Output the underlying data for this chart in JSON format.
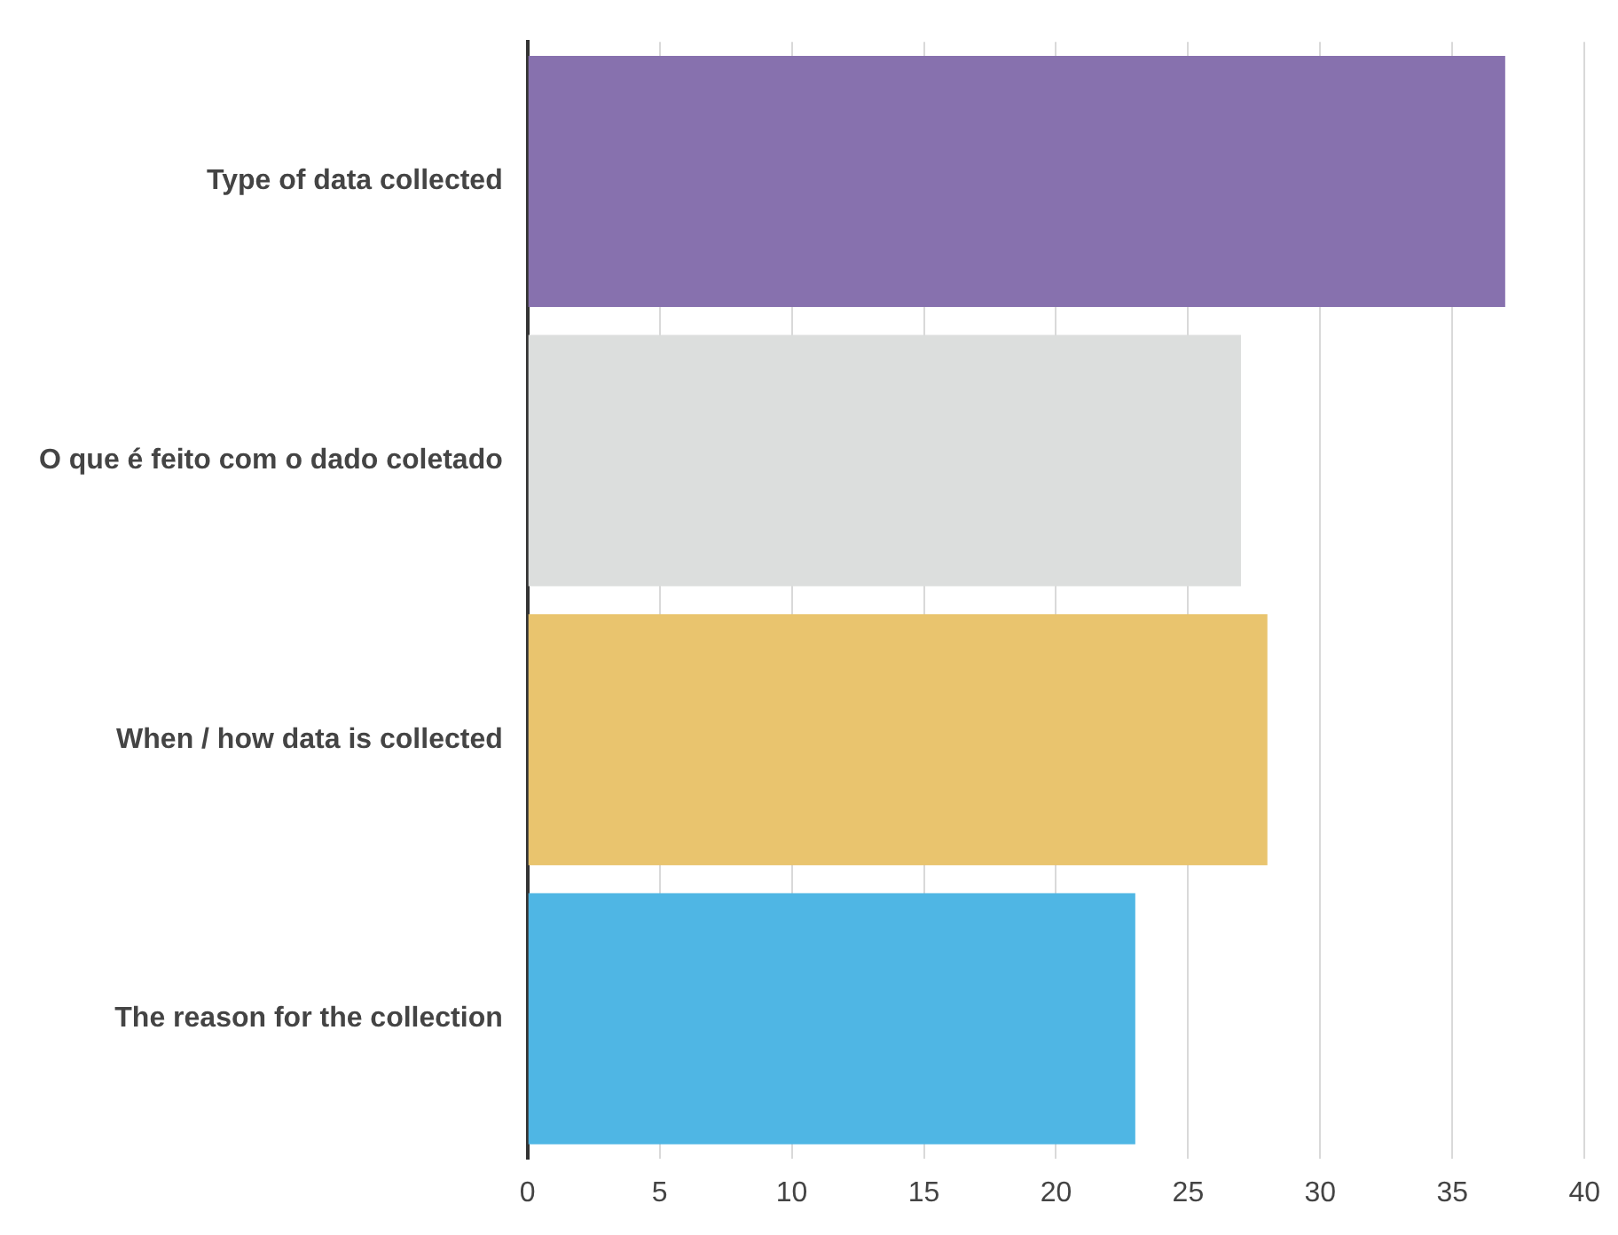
{
  "chart_data": {
    "type": "bar",
    "orientation": "horizontal",
    "categories": [
      "Type of data collected",
      "O que é feito com o dado coletado",
      "When / how data is collected",
      "The reason for the collection"
    ],
    "values": [
      37,
      27,
      28,
      23
    ],
    "colors": [
      "#8771ae",
      "#dcdedd",
      "#e9c46e",
      "#4fb6e4"
    ],
    "xlim": [
      0,
      40
    ],
    "xticks": [
      0,
      5,
      10,
      15,
      20,
      25,
      30,
      35,
      40
    ],
    "grid": "x"
  }
}
